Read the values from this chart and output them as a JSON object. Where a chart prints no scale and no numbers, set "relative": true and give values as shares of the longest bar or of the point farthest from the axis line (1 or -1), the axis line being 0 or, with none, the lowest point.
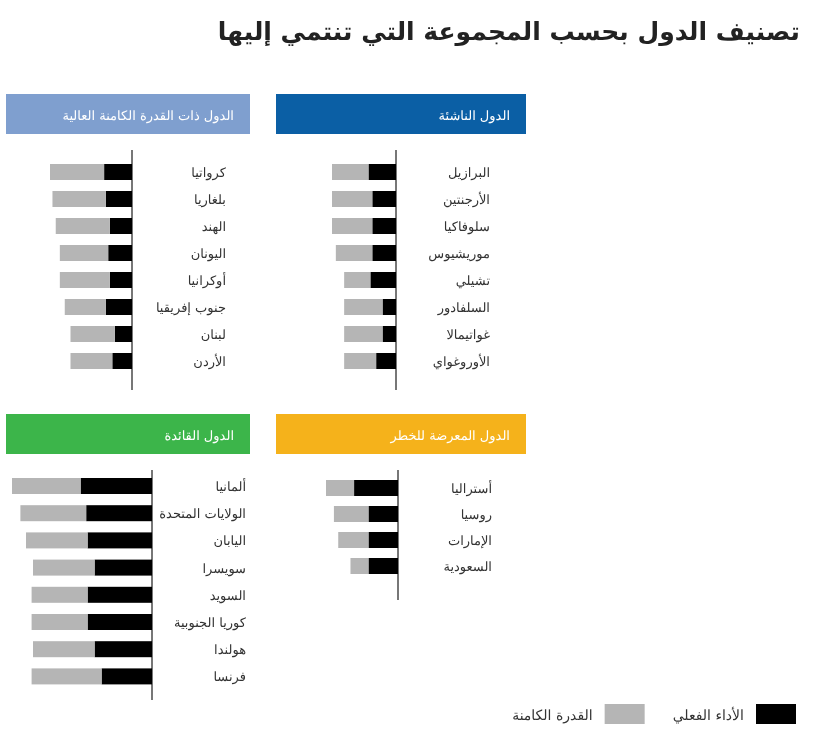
{
  "chart_data": [
    {
      "type": "other",
      "title": "تصنيف الدول بحسب المجموعة التي تنتمي إليها"
    },
    {
      "type": "bar",
      "title": "الدول الناشئة",
      "orientation": "horizontal",
      "stacked": true,
      "relative": true,
      "categories": [
        "البرازيل",
        "الأرجنتين",
        "سلوفاكيا",
        "موريشيوس",
        "تشيلي",
        "السلفادور",
        "غواتيمالا",
        "الأوروغواي"
      ],
      "series": [
        {
          "color": "#000000",
          "values": [
            0.43,
            0.37,
            0.37,
            0.37,
            0.4,
            0.21,
            0.21,
            0.31
          ]
        },
        {
          "color": "#b5b5b5",
          "values": [
            0.57,
            0.63,
            0.63,
            0.57,
            0.41,
            0.6,
            0.6,
            0.5
          ]
        }
      ]
    },
    {
      "type": "bar",
      "title": "الدول ذات القدرة الكامنة العالية",
      "orientation": "horizontal",
      "stacked": true,
      "relative": true,
      "categories": [
        "كرواتيا",
        "بلغاريا",
        "الهند",
        "اليونان",
        "أوكرانيا",
        "جنوب إفريقيا",
        "لبنان",
        "الأردن"
      ],
      "series": [
        {
          "color": "#000000",
          "values": [
            0.34,
            0.32,
            0.27,
            0.29,
            0.27,
            0.32,
            0.21,
            0.24
          ]
        },
        {
          "color": "#b5b5b5",
          "values": [
            0.66,
            0.65,
            0.66,
            0.59,
            0.61,
            0.5,
            0.54,
            0.51
          ]
        }
      ]
    },
    {
      "type": "bar",
      "title": "الدول المعرضة للخطر",
      "orientation": "horizontal",
      "stacked": true,
      "relative": true,
      "categories": [
        "أستراليا",
        "روسيا",
        "الإمارات",
        "السعودية"
      ],
      "series": [
        {
          "color": "#000000",
          "values": [
            0.61,
            0.41,
            0.41,
            0.41
          ]
        },
        {
          "color": "#b5b5b5",
          "values": [
            0.39,
            0.48,
            0.42,
            0.25
          ]
        }
      ]
    },
    {
      "type": "bar",
      "title": "الدول القائدة",
      "orientation": "horizontal",
      "stacked": true,
      "relative": true,
      "legend": "bottom right",
      "categories": [
        "ألمانيا",
        "الولايات المتحدة",
        "اليابان",
        "سويسرا",
        "السويد",
        "كوريا الجنوبية",
        "هولندا",
        "فرنسا"
      ],
      "series": [
        {
          "name": "الأداء الفعلي",
          "color": "#000000",
          "values": [
            0.51,
            0.47,
            0.46,
            0.41,
            0.46,
            0.46,
            0.41,
            0.36
          ]
        },
        {
          "name": "القدرة الكامنة",
          "color": "#b5b5b5",
          "values": [
            0.49,
            0.47,
            0.44,
            0.44,
            0.4,
            0.4,
            0.44,
            0.5
          ]
        }
      ]
    }
  ]
}
